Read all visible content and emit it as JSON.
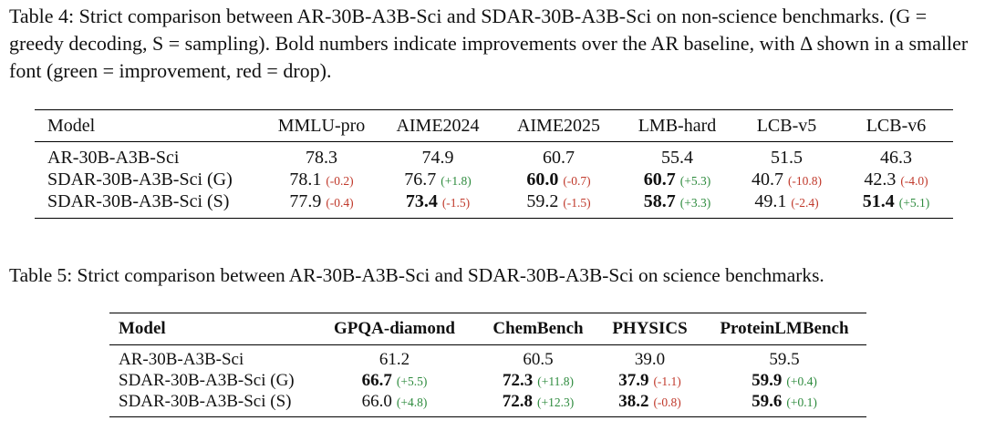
{
  "tables": [
    {
      "caption": "Table 4: Strict comparison between AR-30B-A3B-Sci and SDAR-30B-A3B-Sci on non-science benchmarks. (G = greedy decoding, S = sampling). Bold numbers indicate improvements over the AR baseline, with Δ shown in a smaller font (green = improvement, red = drop).",
      "header_bold": false,
      "header": [
        "Model",
        "MMLU-pro",
        "AIME2024",
        "AIME2025",
        "LMB-hard",
        "LCB-v5",
        "LCB-v6"
      ],
      "rows": [
        {
          "model": "AR-30B-A3B-Sci",
          "cells": [
            {
              "value": "78.3"
            },
            {
              "value": "74.9"
            },
            {
              "value": "60.7"
            },
            {
              "value": "55.4"
            },
            {
              "value": "51.5"
            },
            {
              "value": "46.3"
            }
          ]
        },
        {
          "model": "SDAR-30B-A3B-Sci (G)",
          "cells": [
            {
              "value": "78.1",
              "delta": "(-0.2)",
              "delta_color": "#c0392b"
            },
            {
              "value": "76.7",
              "delta": "(+1.8)",
              "delta_color": "#2e8b3e"
            },
            {
              "value": "60.0",
              "bold": true,
              "delta": "(-0.7)",
              "delta_color": "#c0392b"
            },
            {
              "value": "60.7",
              "bold": true,
              "delta": "(+5.3)",
              "delta_color": "#2e8b3e"
            },
            {
              "value": "40.7",
              "delta": "(-10.8)",
              "delta_color": "#c0392b"
            },
            {
              "value": "42.3",
              "delta": "(-4.0)",
              "delta_color": "#c0392b"
            }
          ]
        },
        {
          "model": "SDAR-30B-A3B-Sci (S)",
          "cells": [
            {
              "value": "77.9",
              "delta": "(-0.4)",
              "delta_color": "#c0392b"
            },
            {
              "value": "73.4",
              "bold": true,
              "delta": "(-1.5)",
              "delta_color": "#c0392b"
            },
            {
              "value": "59.2",
              "delta": "(-1.5)",
              "delta_color": "#c0392b"
            },
            {
              "value": "58.7",
              "bold": true,
              "delta": "(+3.3)",
              "delta_color": "#2e8b3e"
            },
            {
              "value": "49.1",
              "delta": "(-2.4)",
              "delta_color": "#c0392b"
            },
            {
              "value": "51.4",
              "bold": true,
              "delta": "(+5.1)",
              "delta_color": "#2e8b3e"
            }
          ]
        }
      ]
    },
    {
      "caption": "Table 5: Strict comparison between AR-30B-A3B-Sci and SDAR-30B-A3B-Sci on science benchmarks.",
      "header_bold": true,
      "header": [
        "Model",
        "GPQA-diamond",
        "ChemBench",
        "PHYSICS",
        "ProteinLMBench"
      ],
      "rows": [
        {
          "model": "AR-30B-A3B-Sci",
          "cells": [
            {
              "value": "61.2"
            },
            {
              "value": "60.5"
            },
            {
              "value": "39.0"
            },
            {
              "value": "59.5"
            }
          ]
        },
        {
          "model": "SDAR-30B-A3B-Sci (G)",
          "cells": [
            {
              "value": "66.7",
              "bold": true,
              "delta": "(+5.5)",
              "delta_color": "#2e8b3e"
            },
            {
              "value": "72.3",
              "bold": true,
              "delta": "(+11.8)",
              "delta_color": "#2e8b3e"
            },
            {
              "value": "37.9",
              "bold": true,
              "delta": "(-1.1)",
              "delta_color": "#c0392b"
            },
            {
              "value": "59.9",
              "bold": true,
              "delta": "(+0.4)",
              "delta_color": "#2e8b3e"
            }
          ]
        },
        {
          "model": "SDAR-30B-A3B-Sci (S)",
          "cells": [
            {
              "value": "66.0",
              "delta": "(+4.8)",
              "delta_color": "#2e8b3e"
            },
            {
              "value": "72.8",
              "bold": true,
              "delta": "(+12.3)",
              "delta_color": "#2e8b3e"
            },
            {
              "value": "38.2",
              "bold": true,
              "delta": "(-0.8)",
              "delta_color": "#c0392b"
            },
            {
              "value": "59.6",
              "bold": true,
              "delta": "(+0.1)",
              "delta_color": "#2e8b3e"
            }
          ]
        }
      ]
    }
  ]
}
